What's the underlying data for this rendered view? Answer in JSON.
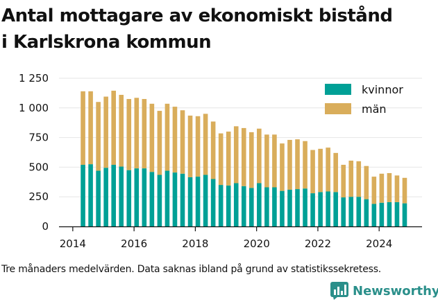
{
  "title_line1": "Antal mottagare av ekonomiskt bistånd",
  "title_line2": "i Karlskrona kommun",
  "note": "Tre månaders medelvärden. Data saknas ibland på grund av statistikssekretess.",
  "brand": {
    "name": "Newsworthy",
    "color": "#2a8f8a",
    "logo_icon": "newsworthy-chart-logo"
  },
  "colors": {
    "kvinnor": "#00a096",
    "man": "#d9ad5b",
    "axis": "#111111",
    "grid": "#e6e6e6"
  },
  "chart_data": {
    "type": "bar",
    "stacked": true,
    "x": [
      2014.333,
      2014.583,
      2014.833,
      2015.083,
      2015.333,
      2015.583,
      2015.833,
      2016.083,
      2016.333,
      2016.583,
      2016.833,
      2017.083,
      2017.333,
      2017.583,
      2017.833,
      2018.083,
      2018.333,
      2018.583,
      2018.833,
      2019.083,
      2019.333,
      2019.583,
      2019.833,
      2020.083,
      2020.333,
      2020.583,
      2020.833,
      2021.083,
      2021.333,
      2021.583,
      2021.833,
      2022.083,
      2022.333,
      2022.583,
      2022.833,
      2023.083,
      2023.333,
      2023.583,
      2023.833,
      2024.083,
      2024.333,
      2024.583,
      2024.833
    ],
    "series": [
      {
        "name": "kvinnor",
        "values": [
          520,
          525,
          470,
          495,
          520,
          505,
          475,
          490,
          490,
          460,
          435,
          470,
          455,
          445,
          415,
          420,
          435,
          400,
          350,
          345,
          365,
          340,
          325,
          365,
          330,
          330,
          300,
          310,
          315,
          320,
          280,
          290,
          295,
          290,
          245,
          250,
          250,
          230,
          190,
          200,
          205,
          205,
          195
        ]
      },
      {
        "name": "män",
        "values": [
          620,
          615,
          580,
          600,
          625,
          605,
          600,
          595,
          585,
          575,
          540,
          565,
          555,
          535,
          520,
          510,
          515,
          485,
          435,
          455,
          480,
          490,
          470,
          460,
          445,
          445,
          400,
          420,
          420,
          400,
          365,
          365,
          370,
          330,
          275,
          305,
          300,
          280,
          230,
          245,
          245,
          225,
          215
        ]
      }
    ],
    "xticks": [
      2014,
      2016,
      2018,
      2020,
      2022,
      2024
    ],
    "xtick_labels": [
      "2014",
      "2016",
      "2018",
      "2020",
      "2022",
      "2024"
    ],
    "xlim": [
      2013.55,
      2025.4
    ],
    "yticks": [
      0,
      250,
      500,
      750,
      1000,
      1250
    ],
    "ytick_labels": [
      "0",
      "250",
      "500",
      "750",
      "1 000",
      "1 250"
    ],
    "ylim": [
      0,
      1250
    ],
    "grid": true,
    "legend": {
      "placement": "top-right",
      "entries": [
        "kvinnor",
        "män"
      ]
    }
  }
}
